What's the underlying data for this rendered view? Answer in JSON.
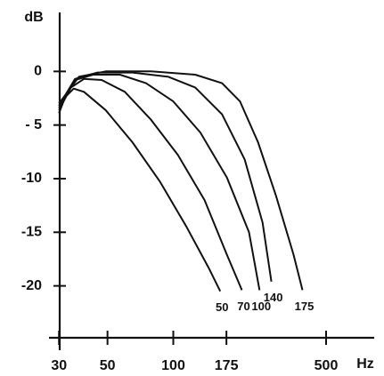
{
  "chart_data": {
    "type": "line",
    "y_label": "dB",
    "x_label": "Hz",
    "xscale": "log",
    "xlim": [
      27,
      830
    ],
    "ylim": [
      -26,
      5.5
    ],
    "xticks": [
      30,
      50,
      100,
      175,
      500
    ],
    "yticks": [
      0,
      {
        "value": -5,
        "label": "- 5"
      },
      {
        "value": -10,
        "label": "-10"
      },
      {
        "value": -15,
        "label": "-15"
      },
      {
        "value": -20,
        "label": "-20"
      }
    ],
    "series": [
      {
        "name": "50",
        "color": "#111111",
        "x": [
          30,
          32,
          35,
          39,
          49,
          65,
          87,
          115,
          145,
          164
        ],
        "values": [
          -3.9,
          -2.4,
          -1.6,
          -1.9,
          -3.6,
          -6.6,
          -10.3,
          -14.5,
          -18.3,
          -20.5
        ]
      },
      {
        "name": "70",
        "color": "#111111",
        "x": [
          30,
          34,
          39,
          47,
          60,
          79,
          105,
          139,
          176,
          206
        ],
        "values": [
          -3.6,
          -1.5,
          -0.7,
          -0.8,
          -1.9,
          -4.5,
          -7.8,
          -12,
          -17.1,
          -20.4
        ]
      },
      {
        "name": "100",
        "color": "#111111",
        "x": [
          30,
          35.5,
          43,
          57,
          75,
          100,
          133,
          176,
          222,
          248
        ],
        "values": [
          -3.4,
          -0.8,
          -0.3,
          -0.3,
          -1.1,
          -2.8,
          -5.7,
          -9.9,
          -15,
          -20.4
        ]
      },
      {
        "name": "140",
        "color": "#111111",
        "x": [
          30,
          35.5,
          45,
          65,
          95,
          126,
          167,
          212,
          256,
          281
        ],
        "values": [
          -3.2,
          -0.7,
          -0.1,
          -0.1,
          -0.5,
          -1.5,
          -4,
          -8.2,
          -14.1,
          -19.6
        ]
      },
      {
        "name": "175",
        "color": "#111111",
        "x": [
          30,
          37,
          49,
          79,
          126,
          167,
          202,
          244,
          295,
          355,
          390
        ],
        "values": [
          -3,
          -0.5,
          0,
          0,
          -0.3,
          -1.1,
          -2.8,
          -6.6,
          -11.6,
          -17.1,
          -20.4
        ]
      }
    ]
  }
}
